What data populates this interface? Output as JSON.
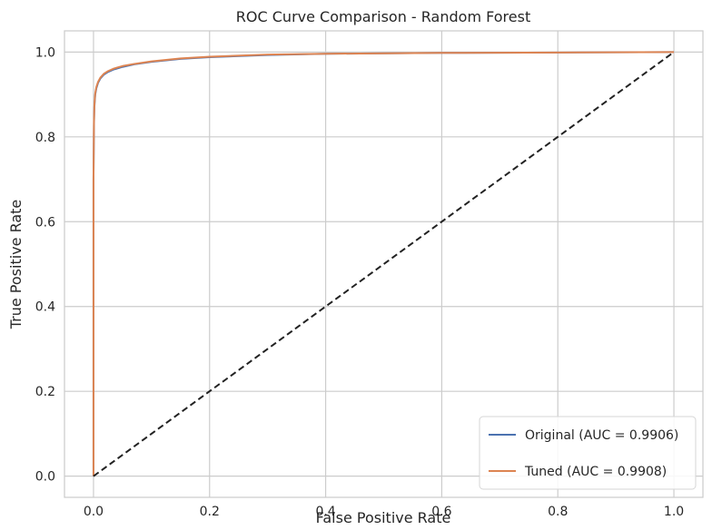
{
  "chart_data": {
    "type": "line",
    "title": "ROC Curve Comparison - Random Forest",
    "xlabel": "False Positive Rate",
    "ylabel": "True Positive Rate",
    "xlim": [
      -0.05,
      1.05
    ],
    "ylim": [
      -0.05,
      1.05
    ],
    "xticks": [
      "0.0",
      "0.2",
      "0.4",
      "0.6",
      "0.8",
      "1.0"
    ],
    "yticks": [
      "0.0",
      "0.2",
      "0.4",
      "0.6",
      "0.8",
      "1.0"
    ],
    "grid": true,
    "legend_position": "lower-right",
    "series": [
      {
        "name": "Original (AUC = 0.9906)",
        "color": "#4c72b0",
        "x": [
          0.0,
          0.0,
          0.0008,
          0.0015,
          0.003,
          0.005,
          0.008,
          0.012,
          0.018,
          0.025,
          0.035,
          0.05,
          0.07,
          0.1,
          0.15,
          0.2,
          0.3,
          0.4,
          0.6,
          0.8,
          1.0
        ],
        "y": [
          0.0,
          0.7,
          0.83,
          0.87,
          0.9,
          0.915,
          0.928,
          0.938,
          0.947,
          0.953,
          0.959,
          0.965,
          0.971,
          0.977,
          0.984,
          0.988,
          0.993,
          0.996,
          0.998,
          0.999,
          1.0
        ]
      },
      {
        "name": "Tuned (AUC = 0.9908)",
        "color": "#dd8452",
        "x": [
          0.0,
          0.0,
          0.0008,
          0.0015,
          0.003,
          0.005,
          0.008,
          0.012,
          0.018,
          0.025,
          0.035,
          0.05,
          0.07,
          0.1,
          0.15,
          0.2,
          0.3,
          0.4,
          0.6,
          0.8,
          1.0
        ],
        "y": [
          0.0,
          0.7,
          0.835,
          0.875,
          0.903,
          0.918,
          0.93,
          0.94,
          0.949,
          0.955,
          0.961,
          0.967,
          0.972,
          0.978,
          0.985,
          0.989,
          0.994,
          0.996,
          0.998,
          0.999,
          1.0
        ]
      }
    ],
    "reference_line": {
      "x": [
        0,
        1
      ],
      "y": [
        0,
        1
      ],
      "color": "#222222",
      "style": "dashed"
    }
  }
}
